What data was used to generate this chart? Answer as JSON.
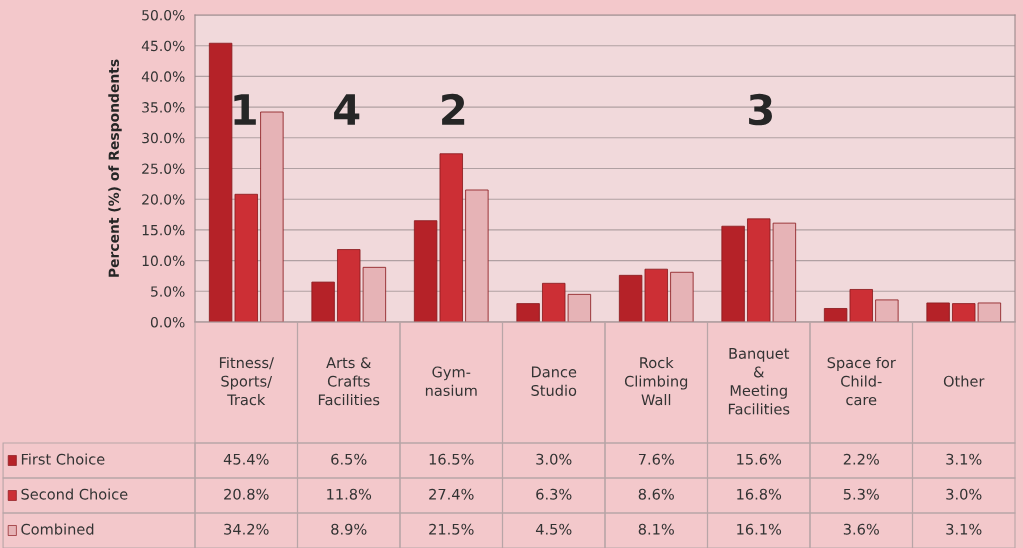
{
  "chart_data": {
    "type": "bar",
    "ylabel": "Percent (%) of Respondents",
    "categories": [
      "Fitness/\nSports/\nTrack",
      "Arts &\nCrafts\nFacilities",
      "Gym-\nnasium",
      "Dance\nStudio",
      "Rock\nClimbing\nWall",
      "Banquet\n&\nMeeting\nFacilities",
      "Space for\nChild-\ncare",
      "Other"
    ],
    "series": [
      {
        "name": "First Choice",
        "color": "#b52228",
        "values": [
          45.4,
          6.5,
          16.5,
          3.0,
          7.6,
          15.6,
          2.2,
          3.1
        ],
        "value_labels": [
          "45.4%",
          "6.5%",
          "16.5%",
          "3.0%",
          "7.6%",
          "15.6%",
          "2.2%",
          "3.1%"
        ]
      },
      {
        "name": "Second Choice",
        "color": "#cc2f35",
        "values": [
          20.8,
          11.8,
          27.4,
          6.3,
          8.6,
          16.8,
          5.3,
          3.0
        ],
        "value_labels": [
          "20.8%",
          "11.8%",
          "27.4%",
          "6.3%",
          "8.6%",
          "16.8%",
          "5.3%",
          "3.0%"
        ]
      },
      {
        "name": "Combined",
        "color": "#e6b3b6",
        "values": [
          34.2,
          8.9,
          21.5,
          4.5,
          8.1,
          16.1,
          3.6,
          3.1
        ],
        "value_labels": [
          "34.2%",
          "8.9%",
          "21.5%",
          "4.5%",
          "8.1%",
          "16.1%",
          "3.6%",
          "3.1%"
        ]
      }
    ],
    "ylim": [
      0,
      50
    ],
    "yticks": [
      {
        "value": 0,
        "label": "0.0%"
      },
      {
        "value": 5,
        "label": "5.0%"
      },
      {
        "value": 10,
        "label": "10.0%"
      },
      {
        "value": 15,
        "label": "15.0%"
      },
      {
        "value": 20,
        "label": "20.0%"
      },
      {
        "value": 25,
        "label": "25.0%"
      },
      {
        "value": 30,
        "label": "30.0%"
      },
      {
        "value": 35,
        "label": "35.0%"
      },
      {
        "value": 40,
        "label": "40.0%"
      },
      {
        "value": 45,
        "label": "45.0%"
      },
      {
        "value": 50,
        "label": "50.0%"
      }
    ],
    "grid": "y",
    "legend": "bottom",
    "annotations": [
      "1",
      "4",
      "2",
      "3"
    ]
  }
}
